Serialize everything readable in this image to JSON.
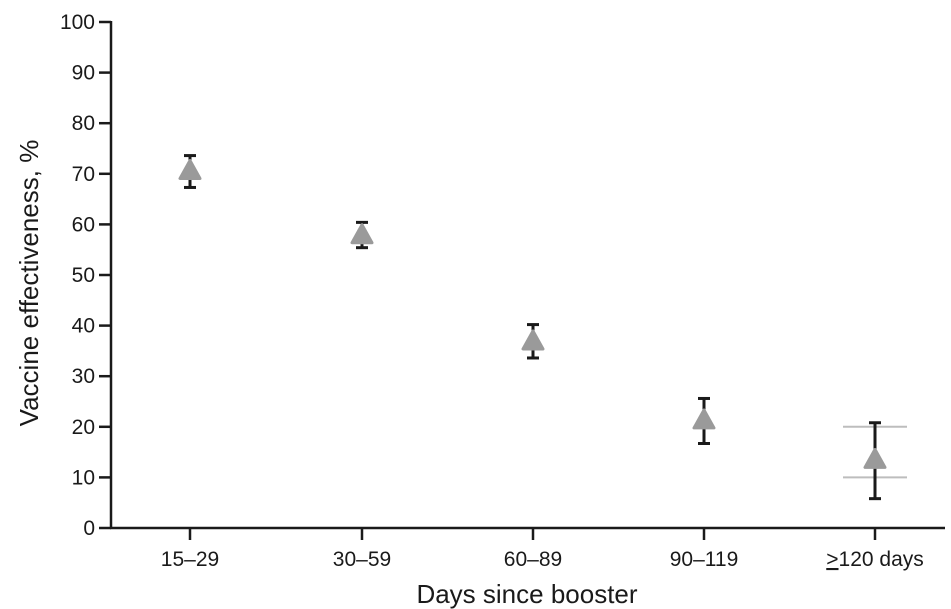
{
  "chart_data": {
    "type": "scatter",
    "xlabel": "Days since booster",
    "ylabel": "Vaccine effectiveness, %",
    "categories": [
      "15–29",
      "30–59",
      "60–89",
      "90–119",
      "≥120 days"
    ],
    "ylim": [
      0,
      100
    ],
    "yticks": [
      0,
      10,
      20,
      30,
      40,
      50,
      60,
      70,
      80,
      90,
      100
    ],
    "series": [
      {
        "values": [
          70.5,
          57.8,
          36.8,
          21.2,
          13.4
        ],
        "ci_lower": [
          67.3,
          55.4,
          33.6,
          16.7,
          5.8
        ],
        "ci_upper": [
          73.6,
          60.4,
          40.2,
          25.6,
          20.8
        ],
        "marker": "triangle",
        "color": "#9a9a9a"
      }
    ],
    "reference_lines": [
      {
        "category": "≥120 days",
        "y": 20
      },
      {
        "category": "≥120 days",
        "y": 10
      }
    ],
    "grid": false,
    "legend": "none"
  }
}
